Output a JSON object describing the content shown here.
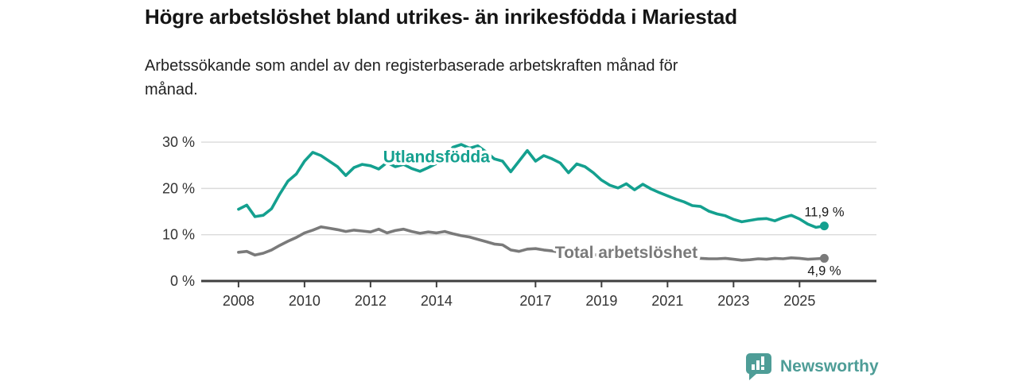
{
  "header": {
    "title": "Högre arbetslöshet bland utrikes- än inrikesfödda i Mariestad",
    "subtitle_lines": [
      "Arbetssökande som andel av den registerbaserade arbetskraften månad för",
      "månad."
    ]
  },
  "footer": {
    "brand": "Newsworthy",
    "brand_color": "#4e9d97",
    "logo_icon": "bar-chart-speech-bubble"
  },
  "colors": {
    "grid": "#dadada",
    "axis": "#3f3f3f",
    "tick_text": "#333333",
    "annotation_text": "#1a1a1a",
    "halo": "#ffffff"
  },
  "chart_data": {
    "type": "line",
    "title": "Högre arbetslöshet bland utrikes- än inrikesfödda i Mariestad",
    "xlabel": "",
    "ylabel": "%",
    "grid": "horizontal",
    "legend_position": "inline-labels",
    "xlim": [
      2006.87,
      2027.33
    ],
    "ylim": [
      0,
      32.07
    ],
    "xticks": [
      {
        "v": 2008,
        "label": "2008"
      },
      {
        "v": 2010,
        "label": "2010"
      },
      {
        "v": 2012,
        "label": "2012"
      },
      {
        "v": 2014,
        "label": "2014"
      },
      {
        "v": 2017,
        "label": "2017"
      },
      {
        "v": 2019,
        "label": "2019"
      },
      {
        "v": 2021,
        "label": "2021"
      },
      {
        "v": 2023,
        "label": "2023"
      },
      {
        "v": 2025,
        "label": "2025"
      }
    ],
    "yticks": [
      {
        "v": 0,
        "label": "0 %"
      },
      {
        "v": 10,
        "label": "10 %"
      },
      {
        "v": 20,
        "label": "20 %"
      },
      {
        "v": 30,
        "label": "30 %"
      }
    ],
    "x": [
      2008,
      2008.25,
      2008.5,
      2008.75,
      2009,
      2009.25,
      2009.5,
      2009.75,
      2010,
      2010.25,
      2010.5,
      2010.75,
      2011,
      2011.25,
      2011.5,
      2011.75,
      2012,
      2012.25,
      2012.5,
      2012.75,
      2013,
      2013.25,
      2013.5,
      2013.75,
      2014,
      2014.25,
      2014.5,
      2014.75,
      2015,
      2015.25,
      2015.5,
      2015.75,
      2016,
      2016.25,
      2016.5,
      2016.75,
      2017,
      2017.25,
      2017.5,
      2017.75,
      2018,
      2018.25,
      2018.5,
      2018.75,
      2019,
      2019.25,
      2019.5,
      2019.75,
      2020,
      2020.25,
      2020.5,
      2020.75,
      2021,
      2021.25,
      2021.5,
      2021.75,
      2022,
      2022.25,
      2022.5,
      2022.75,
      2023,
      2023.25,
      2023.5,
      2023.75,
      2024,
      2024.25,
      2024.5,
      2024.75,
      2025,
      2025.25,
      2025.5,
      2025.75
    ],
    "series": [
      {
        "id": "utlandsfodda",
        "name": "Utlandsfödda",
        "color": "#14a08f",
        "end_label": "11,9 %",
        "end_label_side": "above",
        "label_anchor": {
          "x": 2014.0,
          "y": 26.8
        },
        "values": [
          15.5,
          16.4,
          13.9,
          14.2,
          15.6,
          18.8,
          21.6,
          23.1,
          25.9,
          27.8,
          27.1,
          25.9,
          24.7,
          22.8,
          24.5,
          25.2,
          24.9,
          24.2,
          25.6,
          24.7,
          25.2,
          24.3,
          23.7,
          24.5,
          25.4,
          27.1,
          28.9,
          29.5,
          28.7,
          29.2,
          27.9,
          26.4,
          25.9,
          23.6,
          25.9,
          28.2,
          25.9,
          27.1,
          26.4,
          25.5,
          23.4,
          25.3,
          24.7,
          23.4,
          21.8,
          20.7,
          20.1,
          21.0,
          19.7,
          20.9,
          19.9,
          19.1,
          18.4,
          17.7,
          17.1,
          16.3,
          16.1,
          15.1,
          14.5,
          14.1,
          13.3,
          12.8,
          13.1,
          13.4,
          13.5,
          13.0,
          13.7,
          14.2,
          13.4,
          12.3,
          11.6,
          11.9
        ]
      },
      {
        "id": "total",
        "name": "Total arbetslöshet",
        "color": "#7a7a7a",
        "end_label": "4,9 %",
        "end_label_side": "below",
        "label_anchor": {
          "x": 2019.75,
          "y": 6.15
        },
        "values": [
          6.2,
          6.4,
          5.6,
          6.0,
          6.7,
          7.7,
          8.6,
          9.4,
          10.4,
          11.0,
          11.7,
          11.4,
          11.1,
          10.7,
          11.0,
          10.8,
          10.6,
          11.2,
          10.4,
          10.9,
          11.2,
          10.7,
          10.3,
          10.6,
          10.4,
          10.7,
          10.2,
          9.8,
          9.5,
          9.0,
          8.5,
          8.0,
          7.8,
          6.7,
          6.4,
          6.9,
          7.0,
          6.7,
          6.5,
          6.2,
          6.0,
          5.9,
          5.8,
          5.7,
          5.5,
          5.3,
          5.2,
          5.4,
          5.6,
          6.0,
          5.9,
          5.7,
          5.5,
          5.3,
          5.1,
          5.0,
          4.9,
          4.8,
          4.8,
          4.9,
          4.7,
          4.5,
          4.6,
          4.8,
          4.7,
          4.9,
          4.8,
          5.0,
          4.9,
          4.7,
          4.8,
          4.9
        ]
      }
    ]
  }
}
